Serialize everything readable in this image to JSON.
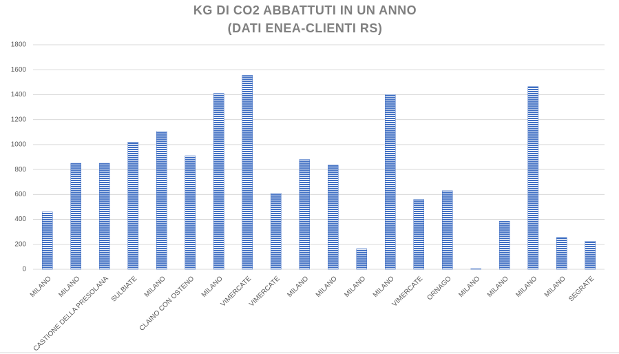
{
  "chart_data": {
    "type": "bar",
    "title": "KG DI CO2 ABBATTUTI IN UN ANNO",
    "subtitle": "(DATI ENEA-CLIENTI RS)",
    "categories": [
      "MILANO",
      "MILANO",
      "CASTIONE DELLA PRESOLANA",
      "SULBIATE",
      "MILANO",
      "CLAINO CON OSTENO",
      "MILANO",
      "VIMERCATE",
      "VIMERCATE",
      "MILANO",
      "MILANO",
      "MILANO",
      "MILANO",
      "VIMERCATE",
      "ORNAGO",
      "MILANO",
      "MILANO",
      "MILANO",
      "MILANO",
      "SEGRATE"
    ],
    "values": [
      460,
      850,
      850,
      1020,
      1105,
      910,
      1410,
      1555,
      610,
      880,
      835,
      165,
      1400,
      560,
      630,
      5,
      385,
      1465,
      255,
      225
    ],
    "color": "#4472c4",
    "ylim": [
      0,
      1800
    ],
    "yticks": [
      0,
      200,
      400,
      600,
      800,
      1000,
      1200,
      1400,
      1600,
      1800
    ],
    "grid": true
  }
}
